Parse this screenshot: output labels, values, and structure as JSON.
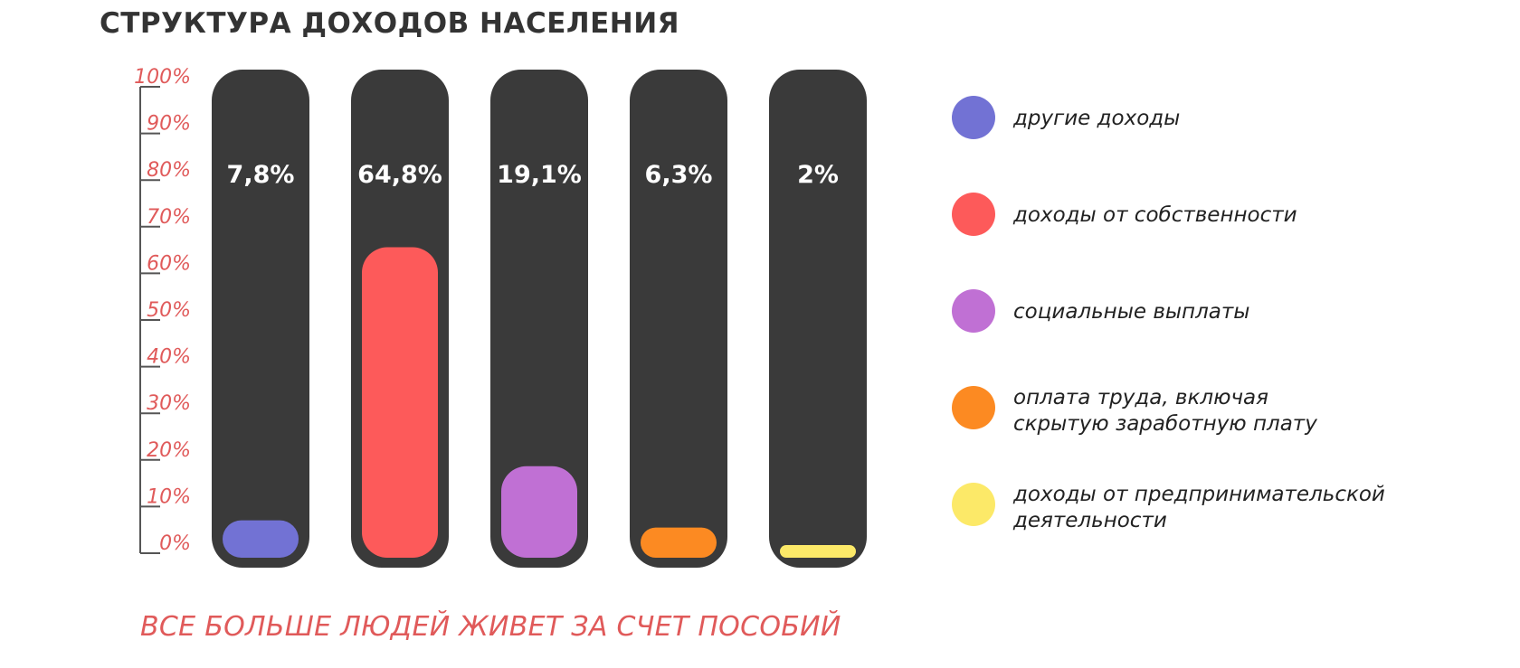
{
  "chart_data": {
    "type": "bar",
    "title": "СТРУКТУРА ДОХОДОВ НАСЕЛЕНИЯ",
    "ylim": [
      0,
      100
    ],
    "y_ticks": [
      0,
      10,
      20,
      30,
      40,
      50,
      60,
      70,
      80,
      90,
      100
    ],
    "y_tick_labels": [
      "0%",
      "10%",
      "20%",
      "30%",
      "40%",
      "50%",
      "60%",
      "70%",
      "80%",
      "90%",
      "100%"
    ],
    "values": [
      7.8,
      64.8,
      19.1,
      6.3,
      2
    ],
    "value_labels": [
      "7,8%",
      "64,8%",
      "19,1%",
      "6,3%",
      "2%"
    ],
    "colors": [
      "#7272d4",
      "#fd5a5a",
      "#c070d4",
      "#fc8a22",
      "#fce968"
    ],
    "legend": {
      "placement": "right",
      "entries": [
        [
          "другие доходы"
        ],
        [
          "доходы от собственности"
        ],
        [
          "социальные выплаты"
        ],
        [
          "оплата труда, включая",
          "скрытую заработную плату"
        ],
        [
          "доходы от предпринимательской",
          "деятельности"
        ]
      ]
    },
    "bar_track_color": "#3a3a3a",
    "grid": false
  },
  "footer": "ВСЕ БОЛЬШЕ ЛЮДЕЙ ЖИВЕТ ЗА СЧЕТ ПОСОБИЙ"
}
